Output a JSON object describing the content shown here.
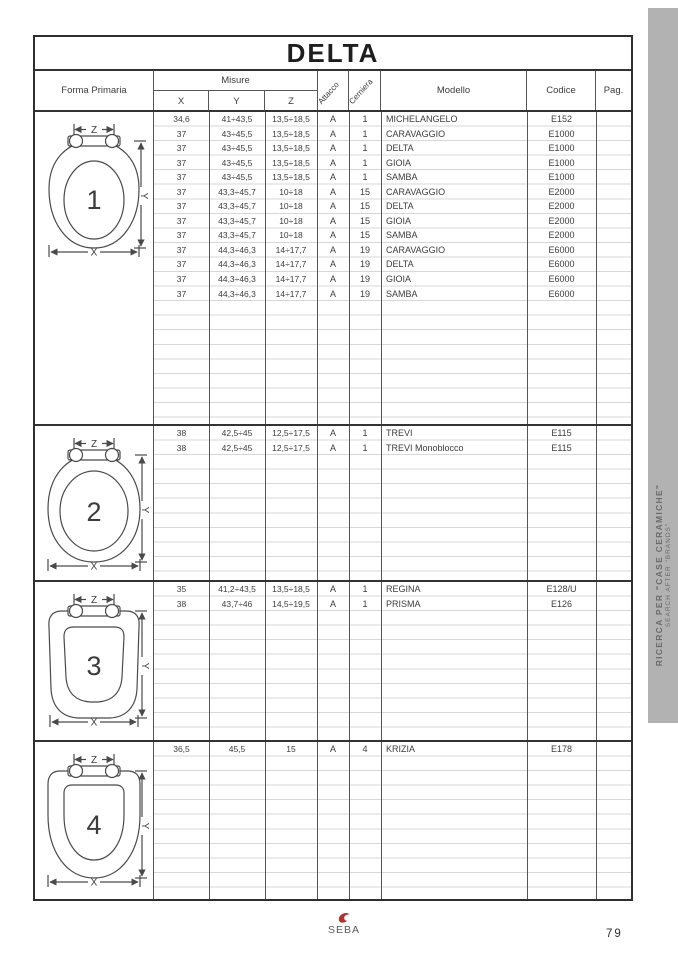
{
  "page": {
    "brand": "SEBA",
    "page_number": "79"
  },
  "table": {
    "title": "DELTA",
    "headers": {
      "forma": "Forma Primaria",
      "misure": "Misure",
      "x": "X",
      "y": "Y",
      "z": "Z",
      "attacco": "Attacco",
      "cerniera": "Cerniera",
      "modello": "Modello",
      "codice": "Codice",
      "pag": "Pag."
    },
    "diagram_labels": {
      "x": "X",
      "y": "Y",
      "z": "Z"
    },
    "blocks": [
      {
        "forma": "1",
        "rows": [
          {
            "x": "34,6",
            "y": "41÷43,5",
            "z": "13,5÷18,5",
            "attacco": "A",
            "cerniera": "1",
            "modello": "MICHELANGELO",
            "codice": "E152"
          },
          {
            "x": "37",
            "y": "43÷45,5",
            "z": "13,5÷18,5",
            "attacco": "A",
            "cerniera": "1",
            "modello": "CARAVAGGIO",
            "codice": "E1000"
          },
          {
            "x": "37",
            "y": "43÷45,5",
            "z": "13,5÷18,5",
            "attacco": "A",
            "cerniera": "1",
            "modello": "DELTA",
            "codice": "E1000"
          },
          {
            "x": "37",
            "y": "43÷45,5",
            "z": "13,5÷18,5",
            "attacco": "A",
            "cerniera": "1",
            "modello": "GIOIA",
            "codice": "E1000"
          },
          {
            "x": "37",
            "y": "43÷45,5",
            "z": "13,5÷18,5",
            "attacco": "A",
            "cerniera": "1",
            "modello": "SAMBA",
            "codice": "E1000"
          },
          {
            "x": "37",
            "y": "43,3÷45,7",
            "z": "10÷18",
            "attacco": "A",
            "cerniera": "15",
            "modello": "CARAVAGGIO",
            "codice": "E2000"
          },
          {
            "x": "37",
            "y": "43,3÷45,7",
            "z": "10÷18",
            "attacco": "A",
            "cerniera": "15",
            "modello": "DELTA",
            "codice": "E2000"
          },
          {
            "x": "37",
            "y": "43,3÷45,7",
            "z": "10÷18",
            "attacco": "A",
            "cerniera": "15",
            "modello": "GIOIA",
            "codice": "E2000"
          },
          {
            "x": "37",
            "y": "43,3÷45,7",
            "z": "10÷18",
            "attacco": "A",
            "cerniera": "15",
            "modello": "SAMBA",
            "codice": "E2000"
          },
          {
            "x": "37",
            "y": "44,3÷46,3",
            "z": "14÷17,7",
            "attacco": "A",
            "cerniera": "19",
            "modello": "CARAVAGGIO",
            "codice": "E6000"
          },
          {
            "x": "37",
            "y": "44,3÷46,3",
            "z": "14÷17,7",
            "attacco": "A",
            "cerniera": "19",
            "modello": "DELTA",
            "codice": "E6000"
          },
          {
            "x": "37",
            "y": "44,3÷46,3",
            "z": "14÷17,7",
            "attacco": "A",
            "cerniera": "19",
            "modello": "GIOIA",
            "codice": "E6000"
          },
          {
            "x": "37",
            "y": "44,3÷46,3",
            "z": "14÷17,7",
            "attacco": "A",
            "cerniera": "19",
            "modello": "SAMBA",
            "codice": "E6000"
          }
        ]
      },
      {
        "forma": "2",
        "rows": [
          {
            "x": "38",
            "y": "42,5÷45",
            "z": "12,5÷17,5",
            "attacco": "A",
            "cerniera": "1",
            "modello": "TREVI",
            "codice": "E115"
          },
          {
            "x": "38",
            "y": "42,5÷45",
            "z": "12,5÷17,5",
            "attacco": "A",
            "cerniera": "1",
            "modello": "TREVI Monoblocco",
            "codice": "E115"
          }
        ]
      },
      {
        "forma": "3",
        "rows": [
          {
            "x": "35",
            "y": "41,2÷43,5",
            "z": "13,5÷18,5",
            "attacco": "A",
            "cerniera": "1",
            "modello": "REGINA",
            "codice": "E128/U"
          },
          {
            "x": "38",
            "y": "43,7÷46",
            "z": "14,5÷19,5",
            "attacco": "A",
            "cerniera": "1",
            "modello": "PRISMA",
            "codice": "E126"
          }
        ]
      },
      {
        "forma": "4",
        "rows": [
          {
            "x": "36,5",
            "y": "45,5",
            "z": "15",
            "attacco": "A",
            "cerniera": "4",
            "modello": "KRIZIA",
            "codice": "E178"
          }
        ]
      }
    ]
  },
  "sidebar": {
    "line1": "RICERCA PER \"CASE CERAMICHE\"",
    "line2": "SEARCH AFTER \"BRANDS\""
  }
}
